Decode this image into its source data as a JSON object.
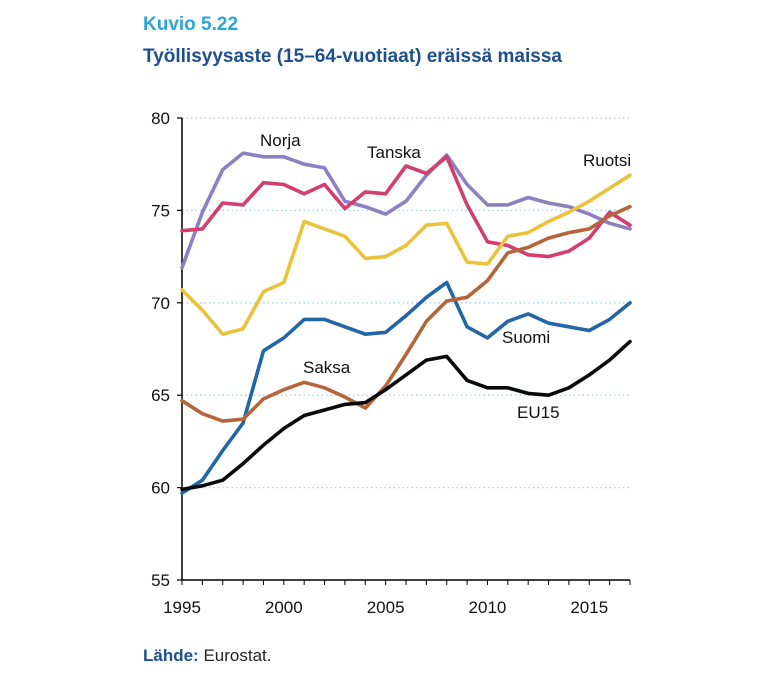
{
  "figure_label": "Kuvio 5.22",
  "title": "Työllisyysaste (15–64-vuotiaat) eräissä maissa",
  "source": {
    "label": "Lähde:",
    "text": "Eurostat."
  },
  "colors": {
    "Norja": "#8c7fc2",
    "Tanska": "#d23f6e",
    "Ruotsi": "#e9c33c",
    "Suomi": "#2266a6",
    "Saksa": "#b5653a",
    "EU15": "#0a0a0a",
    "grid": "#a8cfe6",
    "axis": "#000000"
  },
  "chart_data": {
    "type": "line",
    "title": "Työllisyysaste (15–64-vuotiaat) eräissä maissa",
    "xlabel": "",
    "ylabel": "",
    "xlim": [
      1995,
      2017
    ],
    "ylim": [
      55,
      80
    ],
    "x_ticks": [
      1995,
      2000,
      2005,
      2010,
      2015
    ],
    "y_ticks": [
      55,
      60,
      65,
      70,
      75,
      80
    ],
    "grid": "horizontal dotted",
    "legend": "direct labels",
    "x": [
      1995,
      1996,
      1997,
      1998,
      1999,
      2000,
      2001,
      2002,
      2003,
      2004,
      2005,
      2006,
      2007,
      2008,
      2009,
      2010,
      2011,
      2012,
      2013,
      2014,
      2015,
      2016,
      2017
    ],
    "series": [
      {
        "name": "Norja",
        "values": [
          71.9,
          74.9,
          77.2,
          78.1,
          77.9,
          77.9,
          77.5,
          77.3,
          75.5,
          75.2,
          74.8,
          75.5,
          76.9,
          78.0,
          76.4,
          75.3,
          75.3,
          75.7,
          75.4,
          75.2,
          74.8,
          74.3,
          74.0
        ]
      },
      {
        "name": "Tanska",
        "values": [
          73.9,
          74.0,
          75.4,
          75.3,
          76.5,
          76.4,
          75.9,
          76.4,
          75.1,
          76.0,
          75.9,
          77.4,
          77.0,
          77.9,
          75.3,
          73.3,
          73.1,
          72.6,
          72.5,
          72.8,
          73.5,
          74.9,
          74.2
        ]
      },
      {
        "name": "Ruotsi",
        "values": [
          70.7,
          69.6,
          68.3,
          68.6,
          70.6,
          71.1,
          74.4,
          74.0,
          73.6,
          72.4,
          72.5,
          73.1,
          74.2,
          74.3,
          72.2,
          72.1,
          73.6,
          73.8,
          74.4,
          74.9,
          75.5,
          76.2,
          76.9
        ]
      },
      {
        "name": "Suomi",
        "values": [
          59.7,
          60.4,
          62.0,
          63.5,
          67.4,
          68.1,
          69.1,
          69.1,
          68.7,
          68.3,
          68.4,
          69.3,
          70.3,
          71.1,
          68.7,
          68.1,
          69.0,
          69.4,
          68.9,
          68.7,
          68.5,
          69.1,
          70.0
        ]
      },
      {
        "name": "Saksa",
        "values": [
          64.7,
          64.0,
          63.6,
          63.7,
          64.8,
          65.3,
          65.7,
          65.4,
          64.9,
          64.3,
          65.5,
          67.2,
          69.0,
          70.1,
          70.3,
          71.2,
          72.7,
          73.0,
          73.5,
          73.8,
          74.0,
          74.7,
          75.2
        ]
      },
      {
        "name": "EU15",
        "values": [
          59.9,
          60.1,
          60.4,
          61.3,
          62.3,
          63.2,
          63.9,
          64.2,
          64.5,
          64.6,
          65.3,
          66.1,
          66.9,
          67.1,
          65.8,
          65.4,
          65.4,
          65.1,
          65.0,
          65.4,
          66.1,
          66.9,
          67.9
        ]
      }
    ]
  }
}
